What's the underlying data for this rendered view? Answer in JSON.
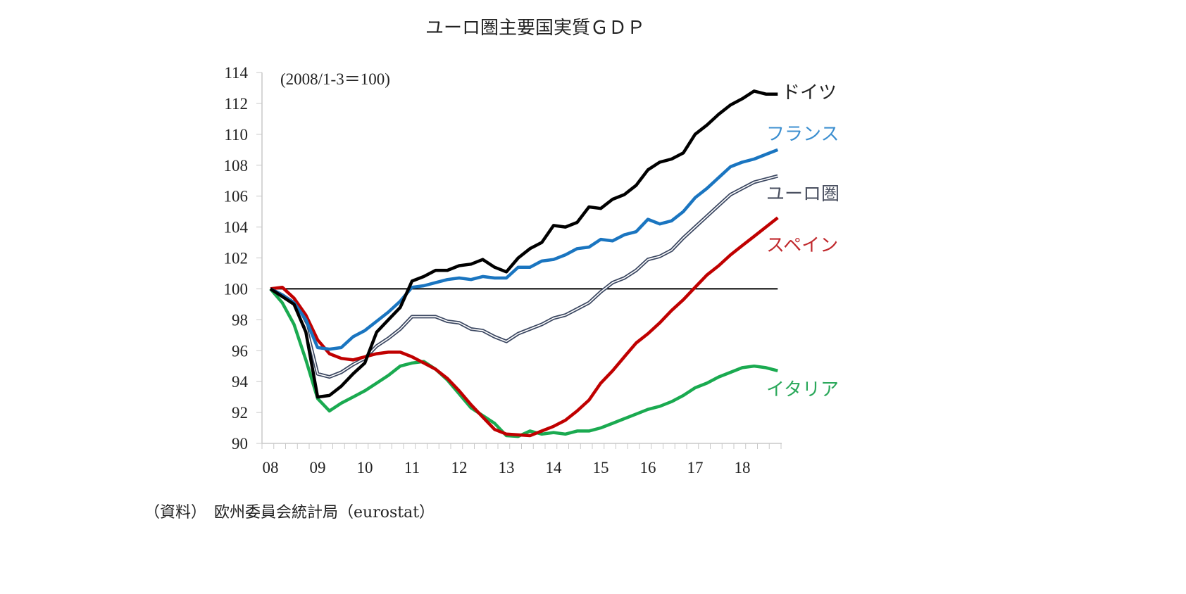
{
  "chart_data": {
    "type": "line",
    "title": "ユーロ圏主要国実質ＧＤＰ",
    "subtitle": "(2008/1-3＝100)",
    "source": "（資料）　欧州委員会統計局（eurostat）",
    "ylim": [
      90,
      114
    ],
    "yticks": [
      "114",
      "112",
      "110",
      "108",
      "106",
      "104",
      "102",
      "100",
      "98",
      "96",
      "94",
      "92",
      "90"
    ],
    "xticks": [
      "08",
      "09",
      "10",
      "11",
      "12",
      "13",
      "14",
      "15",
      "16",
      "17",
      "18"
    ],
    "x_start": "2008Q1",
    "x_end": "2018Q4",
    "reference_line": 100,
    "grid": false,
    "series": [
      {
        "name": "ドイツ",
        "color": "#000000",
        "label_color": "#222222",
        "values": [
          100,
          99.5,
          99.0,
          97.2,
          93.0,
          93.1,
          93.7,
          94.5,
          95.2,
          97.2,
          98.0,
          98.8,
          100.5,
          100.8,
          101.2,
          101.2,
          101.5,
          101.6,
          101.9,
          101.4,
          101.1,
          102.0,
          102.6,
          103.0,
          104.1,
          104.0,
          104.3,
          105.3,
          105.2,
          105.8,
          106.1,
          106.7,
          107.7,
          108.2,
          108.4,
          108.8,
          110.0,
          110.6,
          111.3,
          111.9,
          112.3,
          112.8,
          112.6,
          112.6
        ]
      },
      {
        "name": "フランス",
        "color": "#1a75c0",
        "label_color": "#3c8fd0",
        "values": [
          100,
          99.6,
          99.1,
          98.0,
          96.2,
          96.1,
          96.2,
          96.9,
          97.3,
          97.9,
          98.5,
          99.2,
          100.1,
          100.2,
          100.4,
          100.6,
          100.7,
          100.6,
          100.8,
          100.7,
          100.7,
          101.4,
          101.4,
          101.8,
          101.9,
          102.2,
          102.6,
          102.7,
          103.2,
          103.1,
          103.5,
          103.7,
          104.5,
          104.2,
          104.4,
          105.0,
          105.9,
          106.5,
          107.2,
          107.9,
          108.2,
          108.4,
          108.7,
          109.0
        ]
      },
      {
        "name": "ユーロ圏",
        "color": "#3a4660",
        "label_color": "#4a5060",
        "double": true,
        "values": [
          100,
          99.6,
          99.1,
          97.6,
          94.5,
          94.3,
          94.6,
          95.1,
          95.5,
          96.3,
          96.8,
          97.4,
          98.2,
          98.2,
          98.2,
          97.9,
          97.8,
          97.4,
          97.3,
          96.9,
          96.6,
          97.1,
          97.4,
          97.7,
          98.1,
          98.3,
          98.7,
          99.1,
          99.8,
          100.4,
          100.7,
          101.2,
          101.9,
          102.1,
          102.5,
          103.3,
          104.0,
          104.7,
          105.4,
          106.1,
          106.5,
          106.9,
          107.1,
          107.3
        ]
      },
      {
        "name": "スペイン",
        "color": "#c00000",
        "label_color": "#c0282c",
        "values": [
          100,
          100.1,
          99.4,
          98.3,
          96.7,
          95.8,
          95.5,
          95.4,
          95.6,
          95.8,
          95.9,
          95.9,
          95.6,
          95.2,
          94.8,
          94.2,
          93.4,
          92.5,
          91.7,
          90.9,
          90.6,
          90.55,
          90.5,
          90.8,
          91.1,
          91.5,
          92.1,
          92.8,
          93.9,
          94.7,
          95.6,
          96.5,
          97.1,
          97.8,
          98.6,
          99.3,
          100.1,
          100.9,
          101.5,
          102.2,
          102.8,
          103.4,
          104.0,
          104.6
        ]
      },
      {
        "name": "イタリア",
        "color": "#1aaa50",
        "label_color": "#2aa85a",
        "values": [
          100,
          99.1,
          97.7,
          95.4,
          92.9,
          92.1,
          92.6,
          93.0,
          93.4,
          93.9,
          94.4,
          95.0,
          95.2,
          95.3,
          94.8,
          94.1,
          93.2,
          92.3,
          91.8,
          91.3,
          90.5,
          90.45,
          90.8,
          90.6,
          90.7,
          90.6,
          90.8,
          90.8,
          91.0,
          91.3,
          91.6,
          91.9,
          92.2,
          92.4,
          92.7,
          93.1,
          93.6,
          93.9,
          94.3,
          94.6,
          94.9,
          95.0,
          94.9,
          94.7
        ]
      }
    ]
  }
}
